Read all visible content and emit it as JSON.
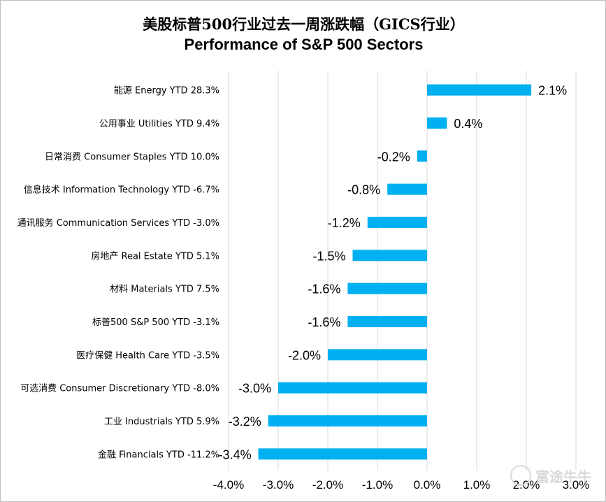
{
  "title_cn": "美股标普500行业过去一周涨跌幅（GICS行业）",
  "title_en": "Performance of S&P 500 Sectors",
  "watermark": "富途牛牛",
  "colors": {
    "bar": "#00b0f0",
    "grid": "#d9d9d9",
    "text": "#000000"
  },
  "chart_data": {
    "type": "bar",
    "orientation": "horizontal",
    "categories": [
      "能源 Energy YTD 28.3%",
      "公用事业 Utilities YTD 9.4%",
      "日常消费 Consumer Staples YTD 10.0%",
      "信息技术 Information Technology YTD -6.7%",
      "通讯服务 Communication Services YTD -3.0%",
      "房地产 Real Estate YTD 5.1%",
      "材料 Materials YTD 7.5%",
      "标普500 S&P 500 YTD -3.1%",
      "医疗保健 Health Care YTD -3.5%",
      "可选消费 Consumer Discretionary YTD -8.0%",
      "工业 Industrials YTD 5.9%",
      "金融 Financials YTD -11.2%"
    ],
    "values": [
      2.1,
      0.4,
      -0.2,
      -0.8,
      -1.2,
      -1.5,
      -1.6,
      -1.6,
      -2.0,
      -3.0,
      -3.2,
      -3.4
    ],
    "data_labels": [
      "2.1%",
      "0.4%",
      "-0.2%",
      "-0.8%",
      "-1.2%",
      "-1.5%",
      "-1.6%",
      "-1.6%",
      "-2.0%",
      "-3.0%",
      "-3.2%",
      "-3.4%"
    ],
    "xlim": [
      -4,
      3
    ],
    "xticks": [
      -4,
      -3,
      -2,
      -1,
      0,
      1,
      2,
      3
    ],
    "xtick_labels": [
      "-4.0%",
      "-3.0%",
      "-2.0%",
      "-1.0%",
      "0.0%",
      "1.0%",
      "2.0%",
      "3.0%"
    ],
    "grid": "vertical",
    "legend": "none"
  }
}
